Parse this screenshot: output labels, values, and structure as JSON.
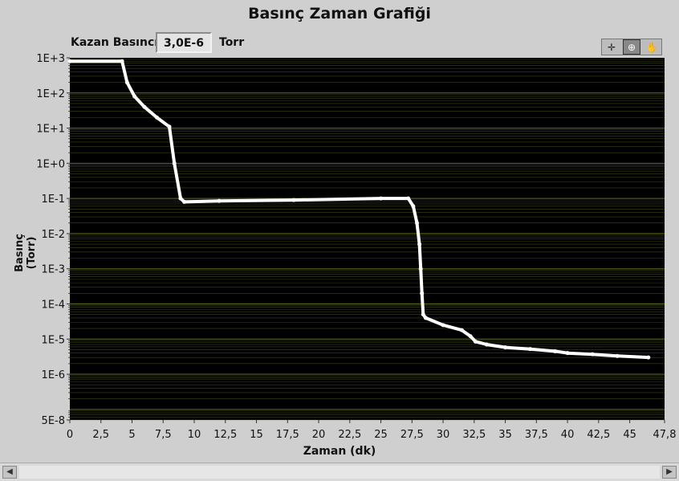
{
  "chart_data": {
    "type": "line",
    "title": "Basınç Zaman Grafiği",
    "xlabel": "Zaman (dk)",
    "ylabel": "Basınç (Torr)",
    "xlim": [
      0,
      47.8
    ],
    "ylim": [
      5e-08,
      1000
    ],
    "yscale": "log",
    "grid": true,
    "x_ticks": [
      "0",
      "2,5",
      "5",
      "7,5",
      "10",
      "12,5",
      "15",
      "17,5",
      "20",
      "22,5",
      "25",
      "27,5",
      "30",
      "32,5",
      "35",
      "37,5",
      "40",
      "42,5",
      "45",
      "47,8"
    ],
    "y_ticks": [
      "1E+3",
      "1E+2",
      "1E+1",
      "1E+0",
      "1E-1",
      "1E-2",
      "1E-3",
      "1E-4",
      "1E-5",
      "1E-6",
      "5E-8"
    ],
    "series": [
      {
        "x": [
          0,
          4.2,
          4.6,
          5.2,
          6.0,
          7.0,
          8.0,
          8.4,
          8.9,
          9.2,
          12.0,
          18.0,
          25.0,
          27.2,
          27.6,
          27.9,
          28.1,
          28.2,
          28.3,
          28.4,
          28.6,
          30.0,
          31.5,
          32.2,
          32.6,
          33.5,
          35.0,
          37.0,
          39.0,
          40.0,
          42.0,
          44.0,
          46.5
        ],
        "values": [
          800,
          800,
          200,
          80,
          40,
          20,
          11,
          1,
          0.1,
          0.08,
          0.085,
          0.09,
          0.1,
          0.1,
          0.06,
          0.02,
          0.005,
          0.001,
          0.0002,
          5e-05,
          4e-05,
          2.5e-05,
          1.8e-05,
          1.2e-05,
          8.5e-06,
          7e-06,
          5.8e-06,
          5.2e-06,
          4.5e-06,
          4e-06,
          3.7e-06,
          3.3e-06,
          3e-06
        ]
      }
    ]
  },
  "header": {
    "gauge_label": "Kazan Basıncı",
    "gauge_value": "3,0E-6",
    "gauge_unit": "Torr"
  },
  "palette": {
    "cursor_icon": "crosshair-icon",
    "zoom_icon": "zoom-icon",
    "pan_icon": "hand-icon"
  },
  "colors": {
    "plot_background": "#000000",
    "grid_color": "#6f7a2a",
    "line_color": "#ffffff"
  }
}
